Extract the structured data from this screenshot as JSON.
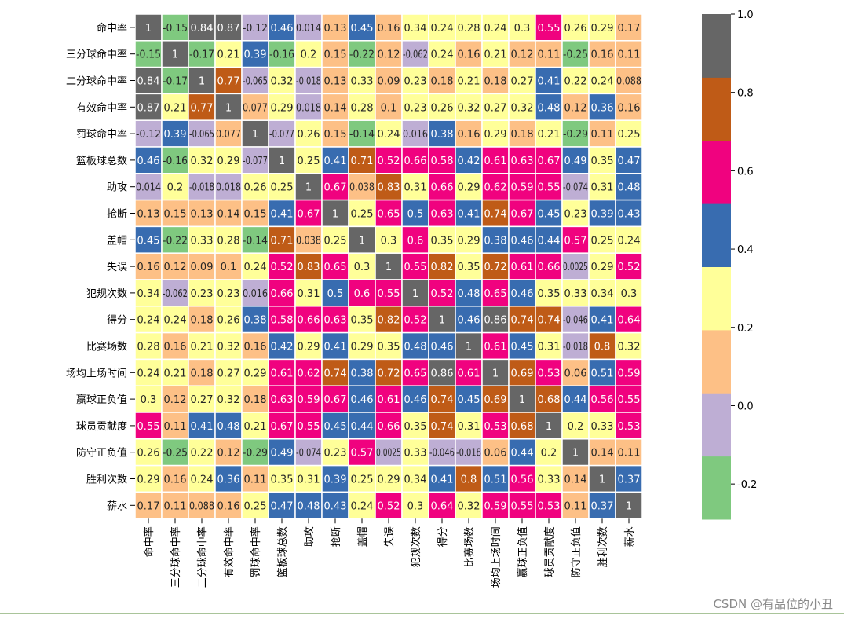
{
  "chart_data": {
    "type": "heatmap",
    "title": "",
    "labels": [
      "命中率",
      "三分球命中率",
      "二分球命中率",
      "有效命中率",
      "罚球命中率",
      "篮板球总数",
      "助攻",
      "抢断",
      "盖帽",
      "失误",
      "犯规次数",
      "得分",
      "比赛场数",
      "场均上场时间",
      "赢球正负值",
      "球员贡献度",
      "防守正负值",
      "胜利次数",
      "薪水"
    ],
    "matrix": [
      [
        1,
        -0.15,
        0.84,
        0.87,
        -0.12,
        0.46,
        0.014,
        0.13,
        0.45,
        0.16,
        0.34,
        0.24,
        0.28,
        0.24,
        0.3,
        0.55,
        0.26,
        0.29,
        0.17
      ],
      [
        -0.15,
        1,
        -0.17,
        0.21,
        0.39,
        -0.16,
        0.2,
        0.15,
        -0.22,
        0.12,
        -0.062,
        0.24,
        0.16,
        0.21,
        0.12,
        0.11,
        -0.25,
        0.16,
        0.11
      ],
      [
        0.84,
        -0.17,
        1,
        0.77,
        -0.065,
        0.32,
        -0.018,
        0.13,
        0.33,
        0.09,
        0.23,
        0.18,
        0.21,
        0.18,
        0.27,
        0.41,
        0.22,
        0.24,
        0.088
      ],
      [
        0.87,
        0.21,
        0.77,
        1,
        0.077,
        0.29,
        0.018,
        0.14,
        0.28,
        0.1,
        0.23,
        0.26,
        0.32,
        0.27,
        0.32,
        0.48,
        0.12,
        0.36,
        0.16
      ],
      [
        -0.12,
        0.39,
        -0.065,
        0.077,
        1,
        -0.077,
        0.26,
        0.15,
        -0.14,
        0.24,
        0.016,
        0.38,
        0.16,
        0.29,
        0.18,
        0.21,
        -0.29,
        0.11,
        0.25
      ],
      [
        0.46,
        -0.16,
        0.32,
        0.29,
        -0.077,
        1,
        0.25,
        0.41,
        0.71,
        0.52,
        0.66,
        0.58,
        0.42,
        0.61,
        0.63,
        0.67,
        0.49,
        0.35,
        0.47
      ],
      [
        0.014,
        0.2,
        -0.018,
        0.018,
        0.26,
        0.25,
        1,
        0.67,
        0.038,
        0.83,
        0.31,
        0.66,
        0.29,
        0.62,
        0.59,
        0.55,
        -0.074,
        0.31,
        0.48
      ],
      [
        0.13,
        0.15,
        0.13,
        0.14,
        0.15,
        0.41,
        0.67,
        1,
        0.25,
        0.65,
        0.5,
        0.63,
        0.41,
        0.74,
        0.67,
        0.45,
        0.23,
        0.39,
        0.43
      ],
      [
        0.45,
        -0.22,
        0.33,
        0.28,
        -0.14,
        0.71,
        0.038,
        0.25,
        1,
        0.3,
        0.6,
        0.35,
        0.29,
        0.38,
        0.46,
        0.44,
        0.57,
        0.25,
        0.24
      ],
      [
        0.16,
        0.12,
        0.09,
        0.1,
        0.24,
        0.52,
        0.83,
        0.65,
        0.3,
        1,
        0.55,
        0.82,
        0.35,
        0.72,
        0.61,
        0.66,
        0.0025,
        0.29,
        0.52
      ],
      [
        0.34,
        -0.062,
        0.23,
        0.23,
        0.016,
        0.66,
        0.31,
        0.5,
        0.6,
        0.55,
        1,
        0.52,
        0.48,
        0.65,
        0.46,
        0.35,
        0.33,
        0.34,
        0.3
      ],
      [
        0.24,
        0.24,
        0.18,
        0.26,
        0.38,
        0.58,
        0.66,
        0.63,
        0.35,
        0.82,
        0.52,
        1,
        0.46,
        0.86,
        0.74,
        0.74,
        -0.046,
        0.41,
        0.64
      ],
      [
        0.28,
        0.16,
        0.21,
        0.32,
        0.16,
        0.42,
        0.29,
        0.41,
        0.29,
        0.35,
        0.48,
        0.46,
        1,
        0.61,
        0.45,
        0.31,
        -0.018,
        0.8,
        0.32
      ],
      [
        0.24,
        0.21,
        0.18,
        0.27,
        0.29,
        0.61,
        0.62,
        0.74,
        0.38,
        0.72,
        0.65,
        0.86,
        0.61,
        1,
        0.69,
        0.53,
        0.06,
        0.51,
        0.59
      ],
      [
        0.3,
        0.12,
        0.27,
        0.32,
        0.18,
        0.63,
        0.59,
        0.67,
        0.46,
        0.61,
        0.46,
        0.74,
        0.45,
        0.69,
        1,
        0.68,
        0.44,
        0.56,
        0.55
      ],
      [
        0.55,
        0.11,
        0.41,
        0.48,
        0.21,
        0.67,
        0.55,
        0.45,
        0.44,
        0.66,
        0.35,
        0.74,
        0.31,
        0.53,
        0.68,
        1,
        0.2,
        0.33,
        0.53
      ],
      [
        0.26,
        -0.25,
        0.22,
        0.12,
        -0.29,
        0.49,
        -0.074,
        0.23,
        0.57,
        0.0025,
        0.33,
        -0.046,
        -0.018,
        0.06,
        0.44,
        0.2,
        1,
        0.14,
        0.11
      ],
      [
        0.29,
        0.16,
        0.24,
        0.36,
        0.11,
        0.35,
        0.31,
        0.39,
        0.25,
        0.29,
        0.34,
        0.41,
        0.8,
        0.51,
        0.56,
        0.33,
        0.14,
        1,
        0.37
      ],
      [
        0.17,
        0.11,
        0.088,
        0.16,
        0.25,
        0.47,
        0.48,
        0.43,
        0.24,
        0.52,
        0.3,
        0.64,
        0.32,
        0.59,
        0.55,
        0.53,
        0.11,
        0.37,
        1
      ]
    ],
    "colorbar": {
      "vmin": -0.29,
      "vmax": 1.0,
      "ticks": [
        -0.2,
        0.0,
        0.2,
        0.4,
        0.6,
        0.8,
        1.0
      ],
      "tick_labels": [
        "-0.2",
        "0.0",
        "0.2",
        "0.4",
        "0.6",
        "0.8",
        "1.0"
      ]
    },
    "colormap": "Accent",
    "palette": [
      "#7fc97f",
      "#beaed4",
      "#fdc086",
      "#ffff99",
      "#386cb0",
      "#f0027f",
      "#bf5b17",
      "#666666"
    ],
    "cell_border_color": "#ffffff"
  },
  "watermark": "CSDN @有品位的小丑"
}
